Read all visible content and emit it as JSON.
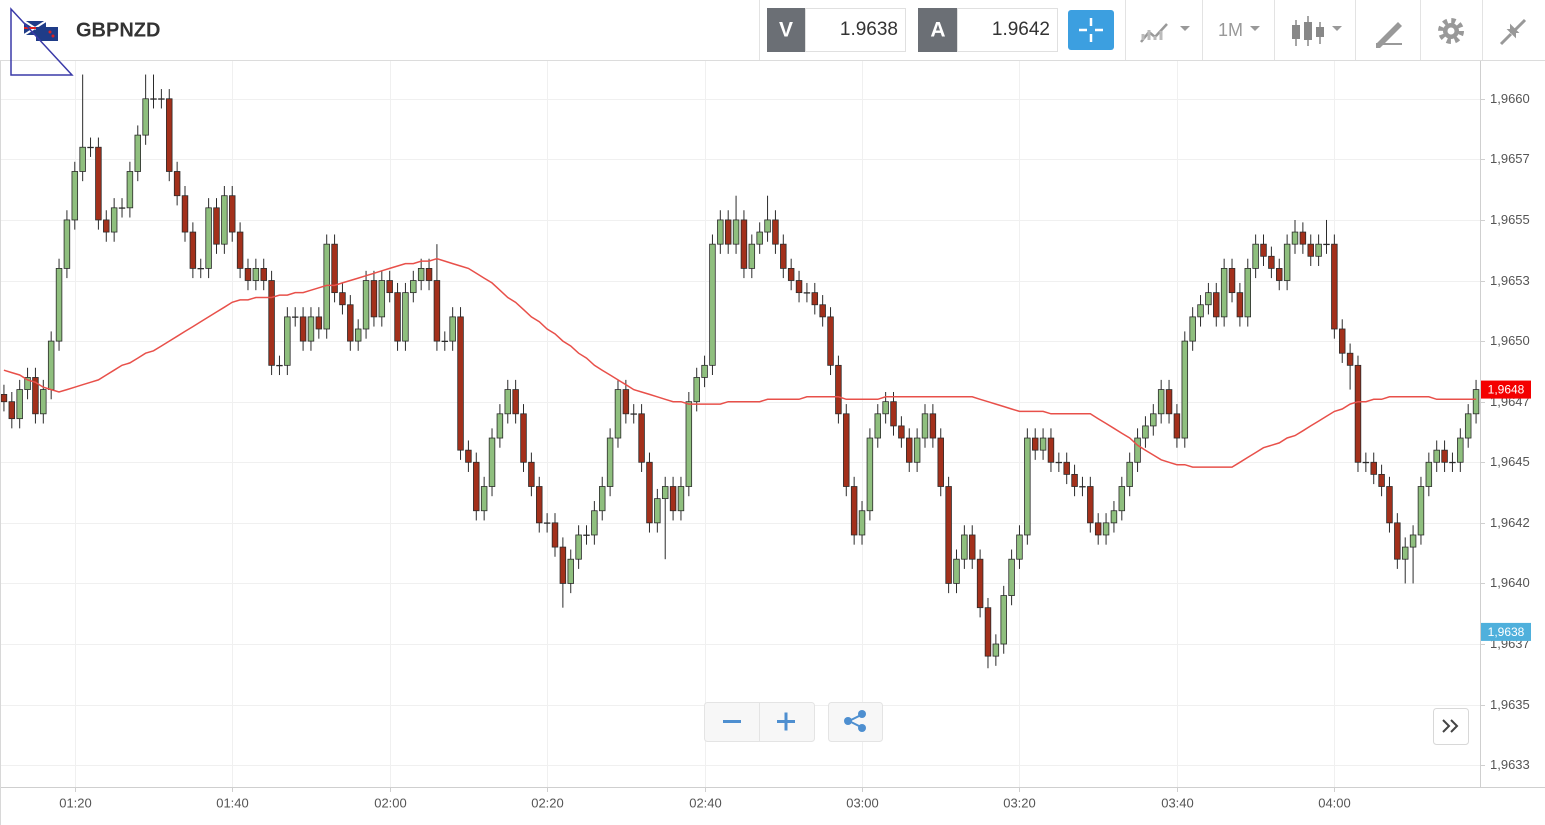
{
  "header": {
    "symbol": "GBPNZD",
    "bid_label": "V",
    "bid": 1.9638,
    "ask_label": "A",
    "ask": 1.9642,
    "timeframe": "1M"
  },
  "chart_data": {
    "type": "candlestick",
    "x": [
      "01:11",
      "01:12",
      "01:13",
      "01:14",
      "01:15",
      "01:16",
      "01:17",
      "01:18",
      "01:19",
      "01:20",
      "01:21",
      "01:22",
      "01:23",
      "01:24",
      "01:25",
      "01:26",
      "01:27",
      "01:28",
      "01:29",
      "01:30",
      "01:31",
      "01:32",
      "01:33",
      "01:34",
      "01:35",
      "01:36",
      "01:37",
      "01:38",
      "01:39",
      "01:40",
      "01:41",
      "01:42",
      "01:43",
      "01:44",
      "01:45",
      "01:46",
      "01:47",
      "01:48",
      "01:49",
      "01:50",
      "01:51",
      "01:52",
      "01:53",
      "01:54",
      "01:55",
      "01:56",
      "01:57",
      "01:58",
      "01:59",
      "02:00",
      "02:01",
      "02:02",
      "02:03",
      "02:04",
      "02:05",
      "02:06",
      "02:07",
      "02:08",
      "02:09",
      "02:10",
      "02:11",
      "02:12",
      "02:13",
      "02:14",
      "02:15",
      "02:16",
      "02:17",
      "02:18",
      "02:19",
      "02:20",
      "02:21",
      "02:22",
      "02:23",
      "02:24",
      "02:25",
      "02:26",
      "02:27",
      "02:28",
      "02:29",
      "02:30",
      "02:31",
      "02:32",
      "02:33",
      "02:34",
      "02:35",
      "02:36",
      "02:37",
      "02:38",
      "02:39",
      "02:40",
      "02:41",
      "02:42",
      "02:43",
      "02:44",
      "02:45",
      "02:46",
      "02:47",
      "02:48",
      "02:49",
      "02:50",
      "02:51",
      "02:52",
      "02:53",
      "02:54",
      "02:55",
      "02:56",
      "02:57",
      "02:58",
      "02:59",
      "03:00",
      "03:01",
      "03:02",
      "03:03",
      "03:04",
      "03:05",
      "03:06",
      "03:07",
      "03:08",
      "03:09",
      "03:10",
      "03:11",
      "03:12",
      "03:13",
      "03:14",
      "03:15",
      "03:16",
      "03:17",
      "03:18",
      "03:19",
      "03:20",
      "03:21",
      "03:22",
      "03:23",
      "03:24",
      "03:25",
      "03:26",
      "03:27",
      "03:28",
      "03:29",
      "03:30",
      "03:31",
      "03:32",
      "03:33",
      "03:34",
      "03:35",
      "03:36",
      "03:37",
      "03:38",
      "03:39",
      "03:40",
      "03:41",
      "03:42",
      "03:43",
      "03:44",
      "03:45",
      "03:46",
      "03:47",
      "03:48",
      "03:49",
      "03:50",
      "03:51",
      "03:52",
      "03:53",
      "03:54",
      "03:55",
      "03:56",
      "03:57",
      "03:58",
      "03:59",
      "04:00",
      "04:01",
      "04:02",
      "04:03",
      "04:04",
      "04:05",
      "04:06",
      "04:07",
      "04:08",
      "04:09",
      "04:10",
      "04:11",
      "04:12",
      "04:13",
      "04:14",
      "04:15",
      "04:16",
      "04:17",
      "04:18"
    ],
    "open": [
      1.96478,
      1.96475,
      1.96468,
      1.9648,
      1.96485,
      1.9647,
      1.9648,
      1.965,
      1.9653,
      1.9655,
      1.9657,
      1.9658,
      1.9658,
      1.9655,
      1.96545,
      1.96555,
      1.96555,
      1.9657,
      1.96585,
      1.966,
      1.966,
      1.966,
      1.9657,
      1.9656,
      1.96545,
      1.9653,
      1.9653,
      1.96555,
      1.9654,
      1.9656,
      1.96545,
      1.9653,
      1.96525,
      1.9653,
      1.96525,
      1.9649,
      1.9649,
      1.9651,
      1.9651,
      1.965,
      1.9651,
      1.96505,
      1.9654,
      1.9652,
      1.96515,
      1.965,
      1.96505,
      1.96525,
      1.9651,
      1.96525,
      1.9652,
      1.965,
      1.9652,
      1.96525,
      1.9653,
      1.96525,
      1.965,
      1.965,
      1.9651,
      1.96455,
      1.9645,
      1.9643,
      1.9644,
      1.9646,
      1.9647,
      1.9648,
      1.9647,
      1.9645,
      1.9644,
      1.96425,
      1.96425,
      1.96415,
      1.964,
      1.9641,
      1.9642,
      1.9642,
      1.9643,
      1.9644,
      1.9646,
      1.9648,
      1.9647,
      1.9647,
      1.9645,
      1.96425,
      1.96435,
      1.9644,
      1.9643,
      1.9644,
      1.96475,
      1.96485,
      1.9649,
      1.9654,
      1.9655,
      1.9654,
      1.9655,
      1.9653,
      1.9654,
      1.96545,
      1.9655,
      1.9654,
      1.9653,
      1.96525,
      1.9652,
      1.9652,
      1.96515,
      1.9651,
      1.9649,
      1.9647,
      1.9644,
      1.9642,
      1.9643,
      1.9646,
      1.9647,
      1.96475,
      1.96465,
      1.9646,
      1.9645,
      1.9646,
      1.9647,
      1.9646,
      1.9644,
      1.964,
      1.9641,
      1.9642,
      1.9641,
      1.9639,
      1.9637,
      1.96375,
      1.96395,
      1.9641,
      1.9642,
      1.9646,
      1.96455,
      1.9646,
      1.9645,
      1.9645,
      1.96445,
      1.9644,
      1.9644,
      1.96425,
      1.9642,
      1.96425,
      1.9643,
      1.9644,
      1.9645,
      1.9646,
      1.96465,
      1.9647,
      1.9648,
      1.9647,
      1.9646,
      1.965,
      1.9651,
      1.96515,
      1.9652,
      1.9651,
      1.9653,
      1.9652,
      1.9651,
      1.9653,
      1.9654,
      1.96535,
      1.9653,
      1.96525,
      1.9654,
      1.96545,
      1.9654,
      1.96535,
      1.9654,
      1.9654,
      1.96505,
      1.96495,
      1.9649,
      1.9645,
      1.9645,
      1.96445,
      1.9644,
      1.96425,
      1.9641,
      1.96415,
      1.9642,
      1.9644,
      1.9645,
      1.96455,
      1.9645,
      1.9645,
      1.9646,
      1.9647
    ],
    "high": [
      1.96482,
      1.96479,
      1.96484,
      1.96489,
      1.96489,
      1.96484,
      1.96504,
      1.96534,
      1.96554,
      1.96574,
      1.9661,
      1.96584,
      1.96584,
      1.96554,
      1.96559,
      1.96559,
      1.96574,
      1.96589,
      1.9661,
      1.9661,
      1.96604,
      1.96604,
      1.96574,
      1.96564,
      1.96549,
      1.96534,
      1.96559,
      1.96559,
      1.96564,
      1.96564,
      1.96549,
      1.96534,
      1.96534,
      1.96534,
      1.96529,
      1.96494,
      1.96514,
      1.96514,
      1.96514,
      1.96514,
      1.96514,
      1.96544,
      1.96544,
      1.96524,
      1.96519,
      1.96509,
      1.96529,
      1.96529,
      1.96529,
      1.96529,
      1.96524,
      1.96524,
      1.96529,
      1.96534,
      1.96534,
      1.9654,
      1.96504,
      1.96514,
      1.96514,
      1.96459,
      1.96454,
      1.96444,
      1.96464,
      1.96474,
      1.96484,
      1.96484,
      1.96474,
      1.96454,
      1.96444,
      1.96429,
      1.96429,
      1.96419,
      1.96414,
      1.96424,
      1.96424,
      1.96434,
      1.96444,
      1.96464,
      1.96484,
      1.96484,
      1.96474,
      1.96474,
      1.96454,
      1.96439,
      1.96444,
      1.96444,
      1.96444,
      1.96479,
      1.96489,
      1.96494,
      1.96544,
      1.96554,
      1.96554,
      1.9656,
      1.96554,
      1.96544,
      1.96549,
      1.9656,
      1.96554,
      1.96544,
      1.96534,
      1.96529,
      1.96524,
      1.96524,
      1.96519,
      1.96514,
      1.96494,
      1.96474,
      1.96444,
      1.96434,
      1.96464,
      1.96474,
      1.96479,
      1.96479,
      1.96469,
      1.96464,
      1.96464,
      1.96474,
      1.96474,
      1.96464,
      1.96444,
      1.96414,
      1.96424,
      1.96424,
      1.96414,
      1.96394,
      1.96379,
      1.96399,
      1.96414,
      1.96424,
      1.96464,
      1.96464,
      1.96464,
      1.96464,
      1.96454,
      1.96454,
      1.96449,
      1.96444,
      1.96444,
      1.96429,
      1.96429,
      1.96434,
      1.96444,
      1.96454,
      1.96464,
      1.96469,
      1.96474,
      1.96484,
      1.96484,
      1.96474,
      1.96504,
      1.96514,
      1.96519,
      1.96524,
      1.96524,
      1.96534,
      1.96534,
      1.96524,
      1.96534,
      1.96544,
      1.96544,
      1.96539,
      1.96534,
      1.96544,
      1.9655,
      1.96549,
      1.96544,
      1.96544,
      1.9655,
      1.96544,
      1.96509,
      1.96499,
      1.96494,
      1.96454,
      1.96454,
      1.96449,
      1.96444,
      1.96429,
      1.96419,
      1.96424,
      1.96444,
      1.96454,
      1.96459,
      1.96459,
      1.96454,
      1.96464,
      1.96474,
      1.96484
    ],
    "low": [
      1.96471,
      1.96464,
      1.96464,
      1.96476,
      1.96466,
      1.96466,
      1.96476,
      1.96496,
      1.96526,
      1.96546,
      1.96566,
      1.96576,
      1.96546,
      1.96541,
      1.96541,
      1.96551,
      1.96551,
      1.96566,
      1.96581,
      1.96596,
      1.96596,
      1.96566,
      1.96556,
      1.96541,
      1.96526,
      1.96526,
      1.96526,
      1.96536,
      1.96536,
      1.96541,
      1.96526,
      1.96521,
      1.96521,
      1.96521,
      1.96486,
      1.96486,
      1.96486,
      1.96506,
      1.96496,
      1.96496,
      1.96501,
      1.96501,
      1.96516,
      1.96511,
      1.96496,
      1.96496,
      1.96501,
      1.96506,
      1.96506,
      1.96516,
      1.96496,
      1.96496,
      1.96516,
      1.96521,
      1.96521,
      1.96496,
      1.96496,
      1.96496,
      1.96451,
      1.96446,
      1.96426,
      1.96426,
      1.96436,
      1.96456,
      1.96466,
      1.96466,
      1.96446,
      1.96436,
      1.96421,
      1.96421,
      1.96411,
      1.9639,
      1.96396,
      1.96406,
      1.96416,
      1.96416,
      1.96426,
      1.96436,
      1.96456,
      1.96466,
      1.96466,
      1.96446,
      1.96421,
      1.96421,
      1.9641,
      1.96426,
      1.96426,
      1.96436,
      1.96471,
      1.96481,
      1.96486,
      1.96536,
      1.96536,
      1.96536,
      1.96526,
      1.96526,
      1.96536,
      1.96541,
      1.96536,
      1.96526,
      1.96521,
      1.96516,
      1.96516,
      1.96511,
      1.96506,
      1.96486,
      1.96466,
      1.96436,
      1.96416,
      1.96416,
      1.96426,
      1.96456,
      1.96466,
      1.96461,
      1.96456,
      1.96446,
      1.96446,
      1.96456,
      1.96456,
      1.96436,
      1.96396,
      1.96396,
      1.96406,
      1.96406,
      1.96386,
      1.96365,
      1.96366,
      1.96371,
      1.96391,
      1.96406,
      1.96416,
      1.96451,
      1.96451,
      1.96446,
      1.96446,
      1.96441,
      1.96436,
      1.96436,
      1.96421,
      1.96416,
      1.96416,
      1.96421,
      1.96426,
      1.96436,
      1.96446,
      1.96456,
      1.96461,
      1.96466,
      1.96466,
      1.96456,
      1.96456,
      1.96496,
      1.96506,
      1.96511,
      1.96506,
      1.96506,
      1.96516,
      1.96506,
      1.96506,
      1.96526,
      1.96531,
      1.96526,
      1.96521,
      1.96521,
      1.96536,
      1.96536,
      1.96531,
      1.96531,
      1.96536,
      1.96501,
      1.96491,
      1.9648,
      1.96446,
      1.96446,
      1.96441,
      1.96436,
      1.96421,
      1.96406,
      1.964,
      1.964,
      1.96416,
      1.96436,
      1.96446,
      1.96446,
      1.96446,
      1.96446,
      1.96456,
      1.96466
    ],
    "close": [
      1.96475,
      1.96468,
      1.9648,
      1.96485,
      1.9647,
      1.9648,
      1.965,
      1.9653,
      1.9655,
      1.9657,
      1.9658,
      1.9658,
      1.9655,
      1.96545,
      1.96555,
      1.96555,
      1.9657,
      1.96585,
      1.966,
      1.966,
      1.966,
      1.9657,
      1.9656,
      1.96545,
      1.9653,
      1.9653,
      1.96555,
      1.9654,
      1.9656,
      1.96545,
      1.9653,
      1.96525,
      1.9653,
      1.96525,
      1.9649,
      1.9649,
      1.9651,
      1.9651,
      1.965,
      1.9651,
      1.96505,
      1.9654,
      1.9652,
      1.96515,
      1.965,
      1.96505,
      1.96525,
      1.9651,
      1.96525,
      1.9652,
      1.965,
      1.9652,
      1.96525,
      1.9653,
      1.96525,
      1.965,
      1.965,
      1.9651,
      1.96455,
      1.9645,
      1.9643,
      1.9644,
      1.9646,
      1.9647,
      1.9648,
      1.9647,
      1.9645,
      1.9644,
      1.96425,
      1.96425,
      1.96415,
      1.964,
      1.9641,
      1.9642,
      1.9642,
      1.9643,
      1.9644,
      1.9646,
      1.9648,
      1.9647,
      1.9647,
      1.9645,
      1.96425,
      1.96435,
      1.9644,
      1.9643,
      1.9644,
      1.96475,
      1.96485,
      1.9649,
      1.9654,
      1.9655,
      1.9654,
      1.9655,
      1.9653,
      1.9654,
      1.96545,
      1.9655,
      1.9654,
      1.9653,
      1.96525,
      1.9652,
      1.9652,
      1.96515,
      1.9651,
      1.9649,
      1.9647,
      1.9644,
      1.9642,
      1.9643,
      1.9646,
      1.9647,
      1.96475,
      1.96465,
      1.9646,
      1.9645,
      1.9646,
      1.9647,
      1.9646,
      1.9644,
      1.964,
      1.9641,
      1.9642,
      1.9641,
      1.9639,
      1.9637,
      1.96375,
      1.96395,
      1.9641,
      1.9642,
      1.9646,
      1.96455,
      1.9646,
      1.9645,
      1.9645,
      1.96445,
      1.9644,
      1.9644,
      1.96425,
      1.9642,
      1.96425,
      1.9643,
      1.9644,
      1.9645,
      1.9646,
      1.96465,
      1.9647,
      1.9648,
      1.9647,
      1.9646,
      1.965,
      1.9651,
      1.96515,
      1.9652,
      1.9651,
      1.9653,
      1.9652,
      1.9651,
      1.9653,
      1.9654,
      1.96535,
      1.9653,
      1.96525,
      1.9654,
      1.96545,
      1.9654,
      1.96535,
      1.9654,
      1.9654,
      1.96505,
      1.96495,
      1.9649,
      1.9645,
      1.9645,
      1.96445,
      1.9644,
      1.96425,
      1.9641,
      1.96415,
      1.9642,
      1.9644,
      1.9645,
      1.96455,
      1.9645,
      1.9645,
      1.9646,
      1.9647,
      1.9648
    ],
    "up_color": "#8fbf7e",
    "down_color": "#a3301b",
    "outline_color": "#2b2b2b",
    "moving_average": {
      "color": "#e8504a",
      "values": [
        1.96488,
        1.96487,
        1.96486,
        1.96484,
        1.96483,
        1.96481,
        1.9648,
        1.96479,
        1.9648,
        1.96481,
        1.96482,
        1.96483,
        1.96484,
        1.96486,
        1.96488,
        1.9649,
        1.96491,
        1.96493,
        1.96495,
        1.96496,
        1.96498,
        1.965,
        1.96502,
        1.96504,
        1.96506,
        1.96508,
        1.9651,
        1.96512,
        1.96514,
        1.96516,
        1.96517,
        1.96517,
        1.96518,
        1.96518,
        1.96518,
        1.96519,
        1.96519,
        1.9652,
        1.9652,
        1.96521,
        1.96522,
        1.96523,
        1.96523,
        1.96524,
        1.96525,
        1.96526,
        1.96527,
        1.96528,
        1.96529,
        1.9653,
        1.96531,
        1.96532,
        1.96532,
        1.96533,
        1.96533,
        1.96534,
        1.96533,
        1.96532,
        1.96531,
        1.9653,
        1.96528,
        1.96526,
        1.96524,
        1.96521,
        1.96518,
        1.96516,
        1.96513,
        1.9651,
        1.96508,
        1.96505,
        1.96503,
        1.965,
        1.96498,
        1.96495,
        1.96493,
        1.9649,
        1.96488,
        1.96486,
        1.96484,
        1.96482,
        1.9648,
        1.96479,
        1.96478,
        1.96477,
        1.96476,
        1.96475,
        1.96475,
        1.96474,
        1.96474,
        1.96474,
        1.96474,
        1.96474,
        1.96475,
        1.96475,
        1.96475,
        1.96475,
        1.96475,
        1.96476,
        1.96476,
        1.96476,
        1.96476,
        1.96476,
        1.96477,
        1.96477,
        1.96477,
        1.96477,
        1.96477,
        1.96476,
        1.96476,
        1.96476,
        1.96476,
        1.96476,
        1.96477,
        1.96477,
        1.96477,
        1.96477,
        1.96477,
        1.96477,
        1.96477,
        1.96477,
        1.96477,
        1.96477,
        1.96477,
        1.96477,
        1.96476,
        1.96475,
        1.96474,
        1.96473,
        1.96472,
        1.96471,
        1.96471,
        1.96471,
        1.96471,
        1.9647,
        1.9647,
        1.9647,
        1.9647,
        1.9647,
        1.9647,
        1.96468,
        1.96466,
        1.96464,
        1.96462,
        1.9646,
        1.96457,
        1.96455,
        1.96453,
        1.96451,
        1.9645,
        1.96449,
        1.96449,
        1.96448,
        1.96448,
        1.96448,
        1.96448,
        1.96448,
        1.96448,
        1.9645,
        1.96452,
        1.96454,
        1.96456,
        1.96457,
        1.96458,
        1.9646,
        1.96461,
        1.96463,
        1.96465,
        1.96467,
        1.96469,
        1.96471,
        1.96472,
        1.96474,
        1.96475,
        1.96475,
        1.96476,
        1.96476,
        1.96477,
        1.96477,
        1.96477,
        1.96477,
        1.96477,
        1.96477,
        1.96476,
        1.96476,
        1.96476,
        1.96476,
        1.96476,
        1.96476
      ]
    },
    "ylim": [
      1.96316,
      1.96616
    ],
    "yticks": [
      {
        "value": 1.966,
        "label": "1,9660"
      },
      {
        "value": 1.96575,
        "label": "1,9657"
      },
      {
        "value": 1.9655,
        "label": "1,9655"
      },
      {
        "value": 1.96525,
        "label": "1,9653"
      },
      {
        "value": 1.965,
        "label": "1,9650"
      },
      {
        "value": 1.96475,
        "label": "1,9647"
      },
      {
        "value": 1.9645,
        "label": "1,9645"
      },
      {
        "value": 1.96425,
        "label": "1,9642"
      },
      {
        "value": 1.964,
        "label": "1,9640"
      },
      {
        "value": 1.96375,
        "label": "1,9637"
      },
      {
        "value": 1.9635,
        "label": "1,9635"
      },
      {
        "value": 1.96325,
        "label": "1,9633"
      }
    ],
    "xticks": [
      "01:20",
      "01:40",
      "02:00",
      "02:20",
      "02:40",
      "03:00",
      "03:20",
      "03:40",
      "04:00"
    ],
    "grid": true,
    "price_tags": [
      {
        "value": 1.9648,
        "label": "1,9648",
        "color": "#f40000"
      },
      {
        "value": 1.9638,
        "label": "1,9638",
        "color": "#4fb0dc"
      }
    ]
  }
}
